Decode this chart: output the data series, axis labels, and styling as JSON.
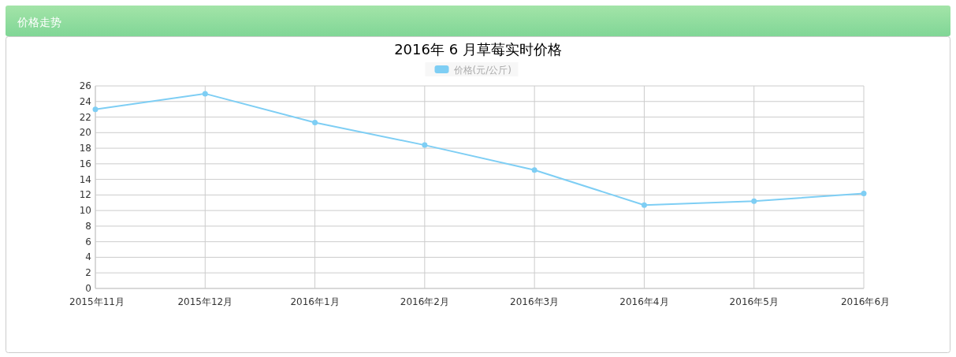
{
  "chart_data": {
    "type": "line",
    "title": "2016年 6 月草莓实时价格",
    "annotations": [
      "价格走势"
    ],
    "categories": [
      "2015年11月",
      "2015年12月",
      "2016年1月",
      "2016年2月",
      "2016年3月",
      "2016年4月",
      "2016年5月",
      "2016年6月"
    ],
    "series": [
      {
        "name": "价格(元/公斤)",
        "color": "#7ecef4",
        "values": [
          23,
          25,
          21.3,
          18.4,
          15.2,
          10.7,
          11.2,
          12.2
        ]
      }
    ],
    "ylim": [
      0,
      26
    ],
    "yticks": [
      0,
      2,
      4,
      6,
      8,
      10,
      12,
      14,
      16,
      18,
      20,
      22,
      24,
      26
    ],
    "grid": true,
    "legend": "top",
    "marker": "circle",
    "line_style": "solid"
  }
}
